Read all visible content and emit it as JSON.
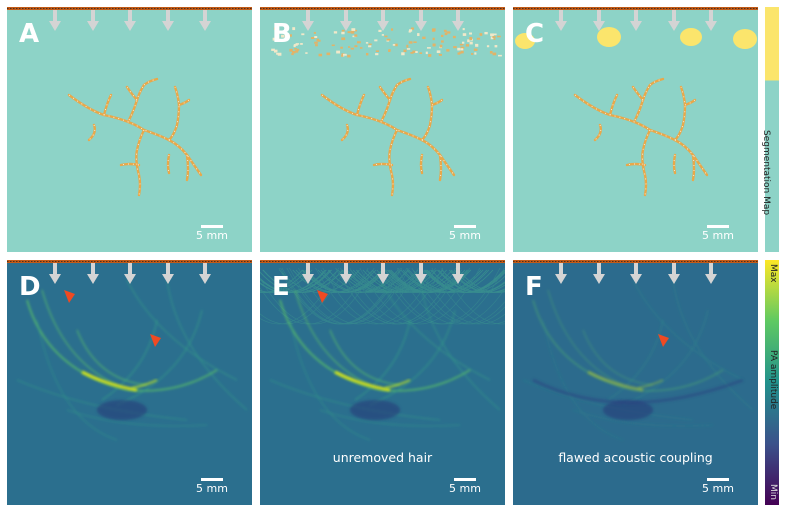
{
  "colors": {
    "seg_bg": "#8dd3c7",
    "pa_bg": "#2b6f8e",
    "vessel": "#e8a84a",
    "hair_blob": "#fbe56c",
    "arrow": "#d4d4d4",
    "marker": "#ef4a22",
    "strip": "#c35a16"
  },
  "panels": [
    {
      "id": "A",
      "kind": "seg",
      "variant": "clean",
      "caption": "",
      "scale": "5 mm",
      "markers": []
    },
    {
      "id": "B",
      "kind": "seg",
      "variant": "hair_dots",
      "caption": "",
      "scale": "5 mm",
      "markers": []
    },
    {
      "id": "C",
      "kind": "seg",
      "variant": "hair_blobs",
      "caption": "",
      "scale": "5 mm",
      "markers": []
    },
    {
      "id": "D",
      "kind": "pa",
      "variant": "clean",
      "caption": "",
      "scale": "5 mm",
      "markers": [
        "marker-icon",
        "marker-icon"
      ]
    },
    {
      "id": "E",
      "kind": "pa",
      "variant": "hair",
      "caption": "unremoved hair",
      "scale": "5 mm",
      "markers": [
        "marker-icon"
      ]
    },
    {
      "id": "F",
      "kind": "pa",
      "variant": "coupling",
      "caption": "flawed acoustic coupling",
      "scale": "5 mm",
      "markers": [
        "marker-icon"
      ]
    }
  ],
  "colorbars": {
    "segmentation": {
      "label": "Segmentation Map",
      "colors": [
        "#fbe56c",
        "#8dd3c7"
      ]
    },
    "pa": {
      "label": "PA amplitude",
      "max": "Max",
      "min": "Min",
      "colors": [
        "#fde725",
        "#5ec962",
        "#21918c",
        "#3b528b",
        "#440154"
      ]
    }
  },
  "icons": {
    "transducer_arrow": "arrow-down-icon",
    "marker": "marker-icon"
  }
}
